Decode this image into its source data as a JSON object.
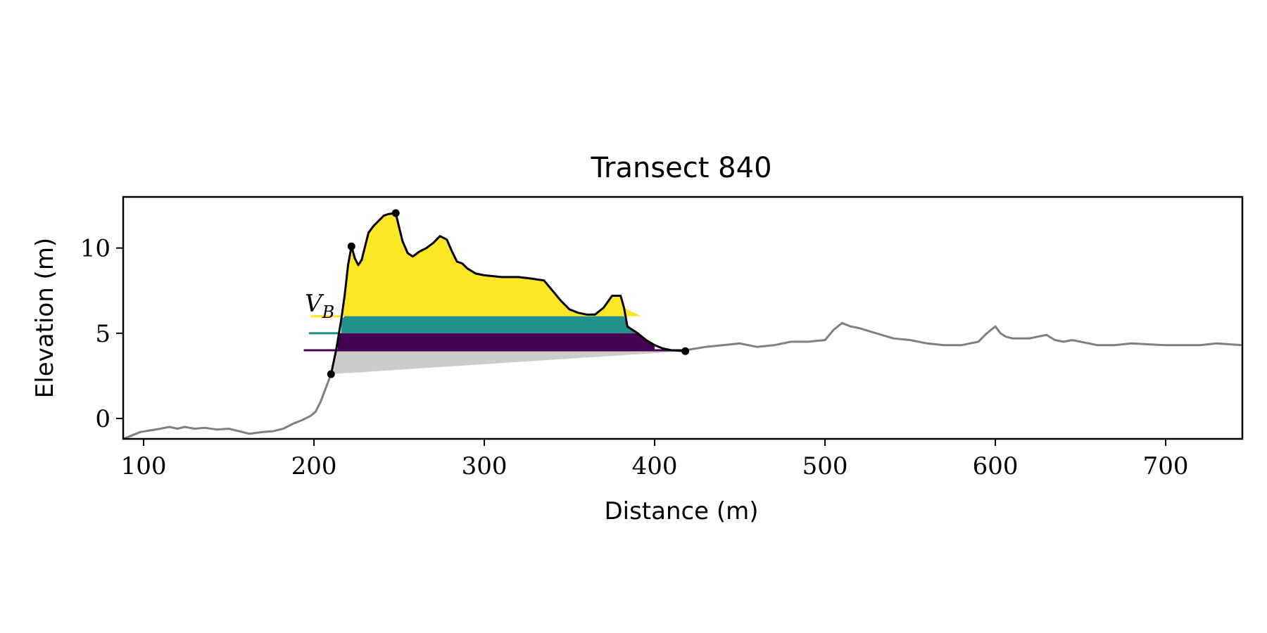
{
  "chart_data": {
    "type": "area",
    "title": "Transect 840",
    "xlabel": "Distance (m)",
    "ylabel": "Elevation (m)",
    "xlim": [
      88,
      745
    ],
    "ylim": [
      -1.2,
      13
    ],
    "xticks": [
      100,
      200,
      300,
      400,
      500,
      600,
      700
    ],
    "yticks": [
      0,
      5,
      10
    ],
    "grid": false,
    "colors": {
      "profile": "#808080",
      "dune_outline": "#000000",
      "layer_top": "#fde725",
      "layer_mid": "#21918c",
      "layer_base": "#440154",
      "below_base": "#cccccc"
    },
    "annotation": {
      "text": "V",
      "subscript": "B"
    },
    "profile": {
      "x": [
        88,
        93,
        98,
        104,
        110,
        115,
        120,
        124,
        130,
        136,
        143,
        150,
        156,
        162,
        170,
        176,
        182,
        188,
        193,
        198,
        201,
        204,
        207,
        210
      ],
      "y": [
        -1.2,
        -1.0,
        -0.8,
        -0.7,
        -0.6,
        -0.5,
        -0.6,
        -0.5,
        -0.6,
        -0.55,
        -0.65,
        -0.6,
        -0.75,
        -0.9,
        -0.8,
        -0.75,
        -0.6,
        -0.3,
        -0.1,
        0.15,
        0.4,
        1.0,
        1.8,
        2.6
      ]
    },
    "profile_after": {
      "x": [
        418,
        430,
        440,
        450,
        460,
        470,
        480,
        490,
        500,
        505,
        510,
        515,
        520,
        530,
        540,
        550,
        560,
        570,
        580,
        590,
        595,
        600,
        603,
        606,
        610,
        620,
        625,
        630,
        635,
        640,
        645,
        650,
        655,
        660,
        670,
        680,
        700,
        710,
        720,
        730,
        745
      ],
      "y": [
        4.0,
        4.2,
        4.3,
        4.4,
        4.2,
        4.3,
        4.5,
        4.5,
        4.6,
        5.2,
        5.6,
        5.4,
        5.3,
        5.0,
        4.7,
        4.6,
        4.4,
        4.3,
        4.3,
        4.5,
        5.0,
        5.4,
        5.0,
        4.8,
        4.7,
        4.7,
        4.8,
        4.9,
        4.6,
        4.5,
        4.6,
        4.5,
        4.4,
        4.3,
        4.3,
        4.4,
        4.3,
        4.3,
        4.3,
        4.4,
        4.3
      ]
    },
    "dune": {
      "x": [
        210,
        213,
        216,
        218,
        220,
        222,
        224,
        226,
        228,
        232,
        235,
        238,
        241,
        244,
        248,
        250,
        252,
        255,
        258,
        262,
        266,
        270,
        274,
        278,
        281,
        284,
        287,
        290,
        295,
        300,
        310,
        320,
        328,
        335,
        340,
        345,
        350,
        355,
        360,
        365,
        370,
        375,
        380,
        382,
        384,
        387,
        390,
        395,
        400,
        405,
        410,
        418
      ],
      "y": [
        2.6,
        4.0,
        5.8,
        7.2,
        9.0,
        10.1,
        9.4,
        9.0,
        9.3,
        10.9,
        11.3,
        11.6,
        11.9,
        12.0,
        12.05,
        11.2,
        10.4,
        9.7,
        9.5,
        9.8,
        10.0,
        10.3,
        10.7,
        10.5,
        9.8,
        9.2,
        9.1,
        8.8,
        8.5,
        8.4,
        8.3,
        8.3,
        8.2,
        8.1,
        7.5,
        6.9,
        6.4,
        6.2,
        6.1,
        6.1,
        6.5,
        7.2,
        7.2,
        6.5,
        5.4,
        5.2,
        5.0,
        4.6,
        4.3,
        4.1,
        4.0,
        3.95
      ]
    },
    "layers": [
      {
        "from": 5.0,
        "to": 6.0,
        "x_start": 216,
        "x_end": 392
      },
      {
        "from": 4.0,
        "to": 5.0,
        "x_start": 214,
        "x_end": 400
      }
    ],
    "base_line": {
      "x": [
        210,
        418
      ],
      "y": [
        2.6,
        3.95
      ]
    },
    "reference_lines": [
      {
        "y": 6.0,
        "x_start": 198,
        "x_end": 216
      },
      {
        "y": 5.0,
        "x_start": 197,
        "x_end": 214
      },
      {
        "y": 4.0,
        "x_start": 194,
        "x_end": 418
      }
    ],
    "markers": [
      {
        "x": 210,
        "y": 2.6
      },
      {
        "x": 222,
        "y": 10.1
      },
      {
        "x": 248,
        "y": 12.05
      },
      {
        "x": 418,
        "y": 3.95
      }
    ]
  }
}
